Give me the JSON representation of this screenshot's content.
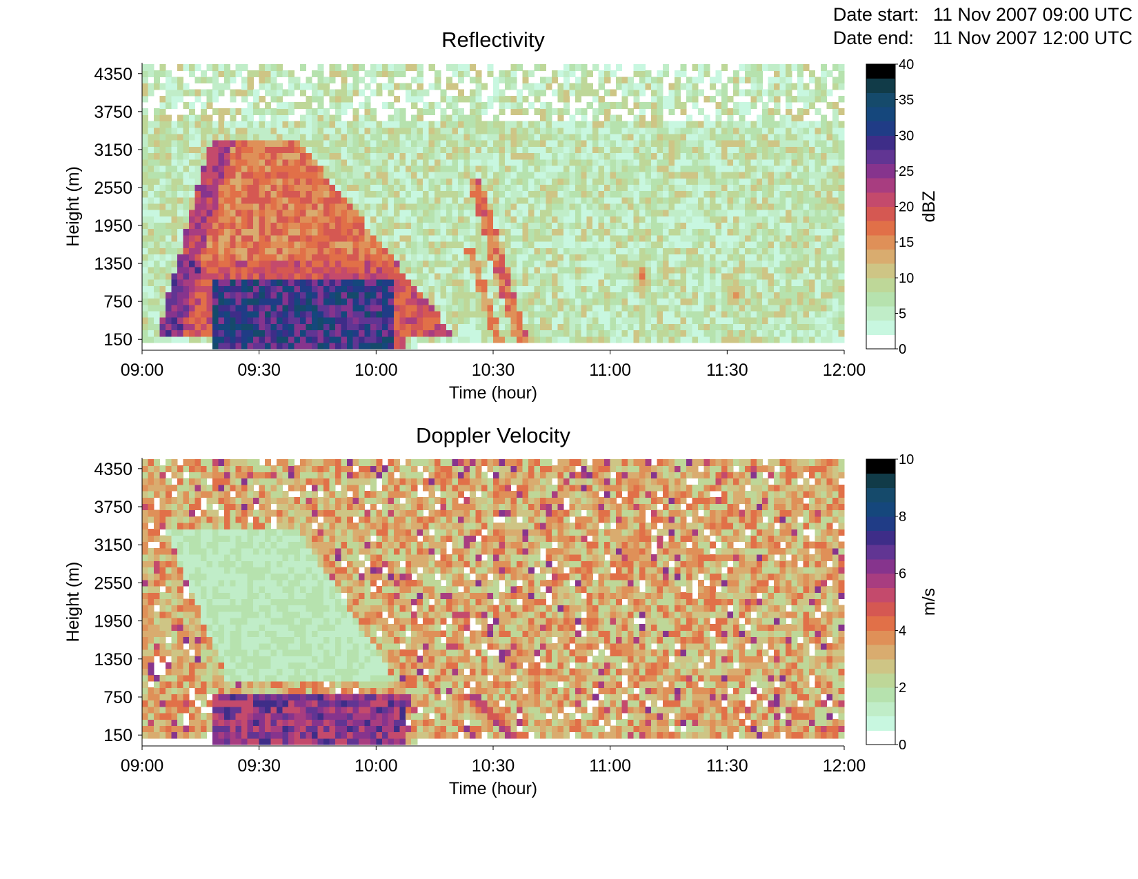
{
  "header": {
    "date_start_label": "Date start:",
    "date_start_value": "11 Nov 2007 09:00 UTC",
    "date_end_label": "Date end:",
    "date_end_value": "11 Nov 2007 12:00 UTC"
  },
  "chart_data": [
    {
      "type": "heatmap",
      "title": "Reflectivity",
      "xlabel": "Time (hour)",
      "ylabel": "Height (m)",
      "x_ticks": [
        "09:00",
        "09:30",
        "10:00",
        "10:30",
        "11:00",
        "11:30",
        "12:00"
      ],
      "y_ticks": [
        "150",
        "750",
        "1350",
        "1950",
        "2550",
        "3150",
        "3750",
        "4350"
      ],
      "xlim": [
        "09:00",
        "12:00"
      ],
      "ylim": [
        0,
        4500
      ],
      "colorbar": {
        "label": "dBZ",
        "range": [
          0,
          40
        ],
        "ticks": [
          "0",
          "5",
          "10",
          "15",
          "20",
          "25",
          "30",
          "35",
          "40"
        ],
        "levels": 20
      },
      "features": [
        {
          "desc": "intense convective echo",
          "time_start": "09:18",
          "time_end": "10:08",
          "height_max_m": 1100,
          "value_dbz": 30
        },
        {
          "desc": "slanted precipitation shaft",
          "time_start": "09:10",
          "time_end": "10:10",
          "height_max_m": 3300,
          "value_dbz": 16
        },
        {
          "desc": "fall streak",
          "time_start": "10:25",
          "time_end": "10:38",
          "height_max_m": 2700,
          "value_dbz": 15
        },
        {
          "desc": "small echo",
          "time_center": "11:08",
          "height_center_m": 1150,
          "value_dbz": 15
        },
        {
          "desc": "small echo",
          "time_center": "11:32",
          "height_center_m": 900,
          "value_dbz": 12
        }
      ],
      "background_dbz": [
        2,
        10
      ]
    },
    {
      "type": "heatmap",
      "title": "Doppler Velocity",
      "xlabel": "Time (hour)",
      "ylabel": "Height (m)",
      "x_ticks": [
        "09:00",
        "09:30",
        "10:00",
        "10:30",
        "11:00",
        "11:30",
        "12:00"
      ],
      "y_ticks": [
        "150",
        "750",
        "1350",
        "1950",
        "2550",
        "3150",
        "3750",
        "4350"
      ],
      "xlim": [
        "09:00",
        "12:00"
      ],
      "ylim": [
        0,
        4500
      ],
      "colorbar": {
        "label": "m/s",
        "range": [
          0,
          10
        ],
        "ticks": [
          "0",
          "2",
          "4",
          "6",
          "8"
        ],
        "top_tick": "10",
        "levels": 20
      },
      "features": [
        {
          "desc": "fast falling precipitation",
          "time_start": "09:18",
          "time_end": "10:08",
          "height_max_m": 800,
          "value_ms": 6
        },
        {
          "desc": "slow falling snow/ice",
          "time_start": "09:10",
          "time_end": "10:05",
          "height_min_m": 1000,
          "height_max_m": 3400,
          "value_ms": 1.3
        },
        {
          "desc": "fall streak",
          "time_start": "10:25",
          "time_end": "10:38",
          "height_max_m": 800,
          "value_ms": 5
        }
      ],
      "background_ms": [
        2,
        4
      ]
    }
  ]
}
